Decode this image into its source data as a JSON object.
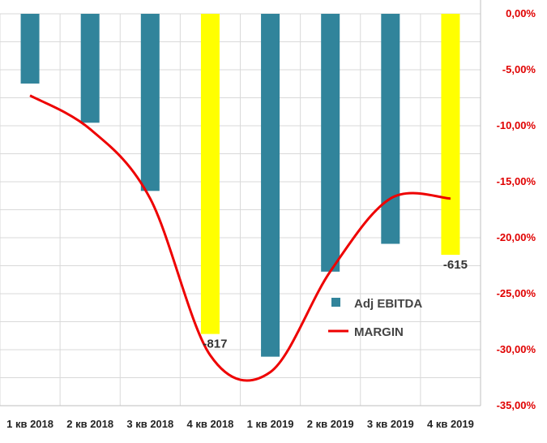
{
  "chart_data": {
    "type": "bar",
    "categories": [
      "1 кв 2018",
      "2 кв 2018",
      "3 кв 2018",
      "4 кв 2018",
      "1 кв 2019",
      "2 кв 2019",
      "3 кв 2019",
      "4 кв 2019"
    ],
    "series": [
      {
        "name": "Adj EBITDA",
        "type": "bar",
        "axis": "left",
        "values": [
          -178,
          -278,
          -452,
          -817,
          -875,
          -658,
          -587,
          -615
        ],
        "highlight_indices": [
          3,
          7
        ],
        "color": "#31849b",
        "highlight_color": "#ffff00"
      },
      {
        "name": "MARGIN",
        "type": "line",
        "axis": "right",
        "values": [
          -7.3,
          -10.3,
          -16.5,
          -30.5,
          -32.0,
          -23.0,
          -16.5,
          -16.5
        ],
        "color": "#ee0000"
      }
    ],
    "data_labels": [
      {
        "index": 3,
        "text": "-817"
      },
      {
        "index": 7,
        "text": "-615"
      }
    ],
    "left_axis": {
      "min": -1000,
      "max": 0,
      "labels_visible": false
    },
    "right_axis": {
      "min": -35,
      "max": 0,
      "tick_labels": [
        "0,00%",
        "-5,00%",
        "-10,00%",
        "-15,00%",
        "-20,00%",
        "-25,00%",
        "-30,00%",
        "-35,00%"
      ],
      "color": "#e00000"
    },
    "grid": true,
    "legend_position": "inside-right",
    "title": "",
    "xlabel": "",
    "ylabel": ""
  }
}
